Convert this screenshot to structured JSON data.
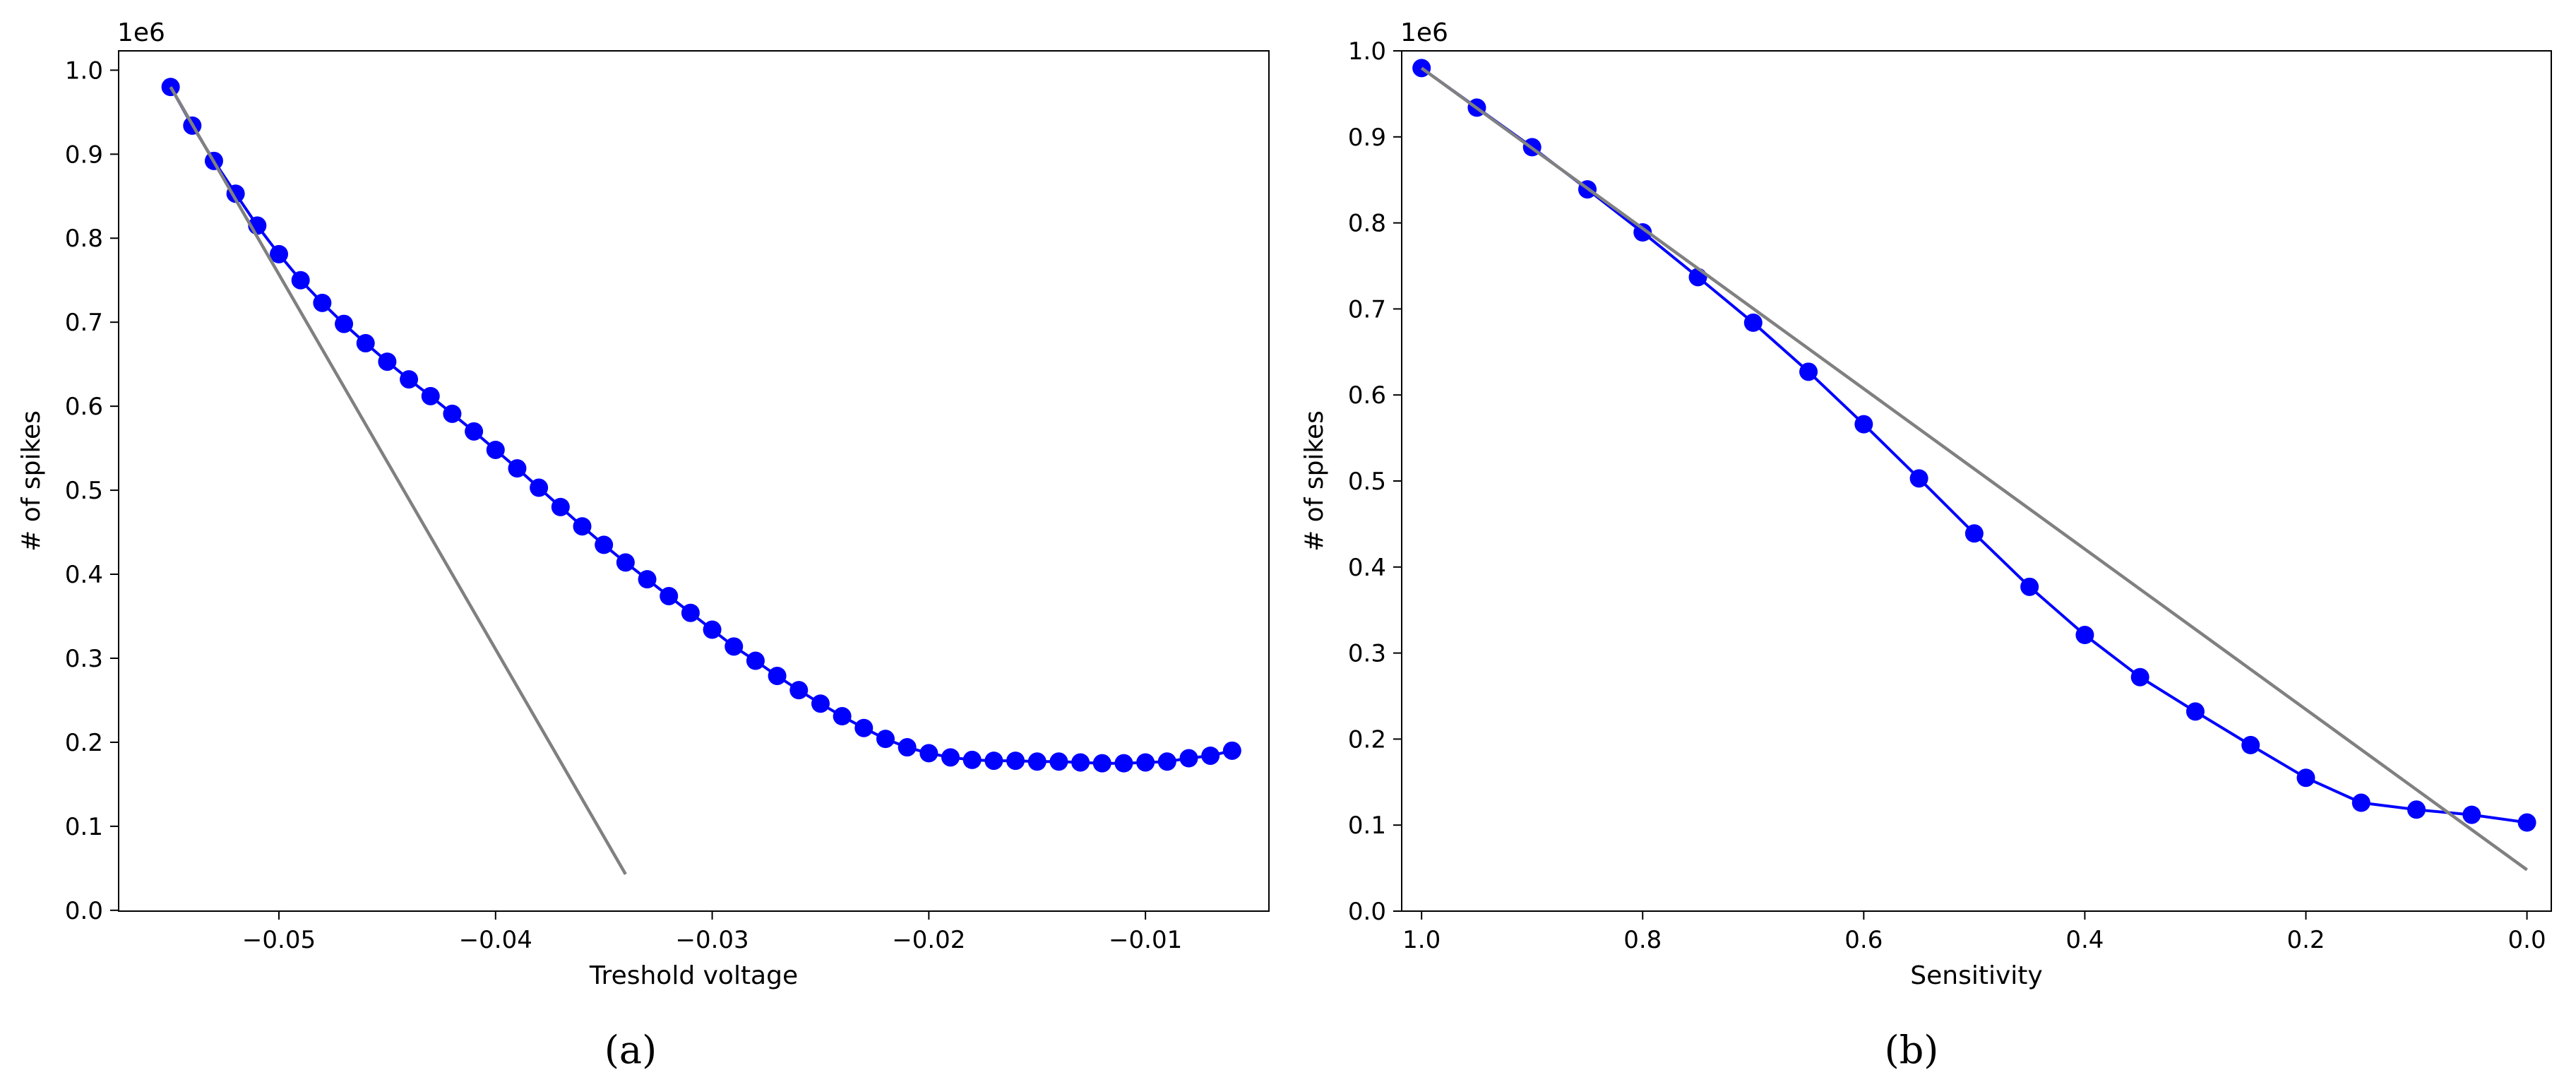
{
  "chart_data": [
    {
      "type": "line",
      "panel_label": "(a)",
      "xlabel": "Treshold voltage",
      "ylabel": "# of spikes",
      "y_offset_label": "1e6",
      "xlim": [
        -0.0574,
        -0.0043
      ],
      "ylim": [
        -0.001,
        1.023
      ],
      "x_ticks": [
        -0.05,
        -0.04,
        -0.03,
        -0.02,
        -0.01
      ],
      "x_tick_labels": [
        "−0.05",
        "−0.04",
        "−0.03",
        "−0.02",
        "−0.01"
      ],
      "y_ticks": [
        0.0,
        0.1,
        0.2,
        0.3,
        0.4,
        0.5,
        0.6,
        0.7,
        0.8,
        0.9,
        1.0
      ],
      "y_tick_labels": [
        "0.0",
        "0.1",
        "0.2",
        "0.3",
        "0.4",
        "0.5",
        "0.6",
        "0.7",
        "0.8",
        "0.9",
        "1.0"
      ],
      "grid": false,
      "series": [
        {
          "color": "#0000ff",
          "marker": "circle",
          "x": [
            -0.055,
            -0.054,
            -0.053,
            -0.052,
            -0.051,
            -0.05,
            -0.049,
            -0.048,
            -0.047,
            -0.046,
            -0.045,
            -0.044,
            -0.043,
            -0.042,
            -0.041,
            -0.04,
            -0.039,
            -0.038,
            -0.037,
            -0.036,
            -0.035,
            -0.034,
            -0.033,
            -0.032,
            -0.031,
            -0.03,
            -0.029,
            -0.028,
            -0.027,
            -0.026,
            -0.025,
            -0.024,
            -0.023,
            -0.022,
            -0.021,
            -0.02,
            -0.019,
            -0.018,
            -0.017,
            -0.016,
            -0.015,
            -0.014,
            -0.013,
            -0.012,
            -0.011,
            -0.01,
            -0.009,
            -0.008,
            -0.007,
            -0.006
          ],
          "y": [
            0.98,
            0.934,
            0.892,
            0.853,
            0.815,
            0.781,
            0.75,
            0.723,
            0.698,
            0.675,
            0.653,
            0.632,
            0.612,
            0.591,
            0.57,
            0.548,
            0.526,
            0.503,
            0.48,
            0.457,
            0.435,
            0.414,
            0.394,
            0.374,
            0.354,
            0.334,
            0.314,
            0.297,
            0.279,
            0.262,
            0.246,
            0.231,
            0.217,
            0.204,
            0.194,
            0.187,
            0.182,
            0.179,
            0.178,
            0.178,
            0.177,
            0.177,
            0.176,
            0.175,
            0.175,
            0.176,
            0.177,
            0.181,
            0.184,
            0.19
          ]
        },
        {
          "color": "#808080",
          "marker": "none",
          "x": [
            -0.055,
            -0.034
          ],
          "y": [
            0.98,
            0.043
          ]
        }
      ]
    },
    {
      "type": "line",
      "panel_label": "(b)",
      "xlabel": "Sensitivity",
      "ylabel": "# of spikes",
      "y_offset_label": "1e6",
      "xlim": [
        1.018,
        -0.022
      ],
      "ylim": [
        0.0,
        1.0
      ],
      "x_ticks": [
        1.0,
        0.8,
        0.6,
        0.4,
        0.2,
        0.0
      ],
      "x_tick_labels": [
        "1.0",
        "0.8",
        "0.6",
        "0.4",
        "0.2",
        "0.0"
      ],
      "y_ticks": [
        0.0,
        0.1,
        0.2,
        0.3,
        0.4,
        0.5,
        0.6,
        0.7,
        0.8,
        0.9,
        1.0
      ],
      "y_tick_labels": [
        "0.0",
        "0.1",
        "0.2",
        "0.3",
        "0.4",
        "0.5",
        "0.6",
        "0.7",
        "0.8",
        "0.9",
        "1.0"
      ],
      "grid": false,
      "series": [
        {
          "color": "#0000ff",
          "marker": "circle",
          "x": [
            1.0,
            0.95,
            0.9,
            0.85,
            0.8,
            0.75,
            0.7,
            0.65,
            0.6,
            0.55,
            0.5,
            0.45,
            0.4,
            0.35,
            0.3,
            0.25,
            0.2,
            0.15,
            0.1,
            0.05,
            0.0
          ],
          "y": [
            0.98,
            0.934,
            0.888,
            0.839,
            0.789,
            0.737,
            0.684,
            0.627,
            0.566,
            0.503,
            0.439,
            0.377,
            0.321,
            0.272,
            0.232,
            0.193,
            0.155,
            0.126,
            0.118,
            0.112,
            0.103
          ]
        },
        {
          "color": "#808080",
          "marker": "none",
          "x": [
            1.0,
            0.0
          ],
          "y": [
            0.98,
            0.048
          ]
        }
      ]
    }
  ]
}
